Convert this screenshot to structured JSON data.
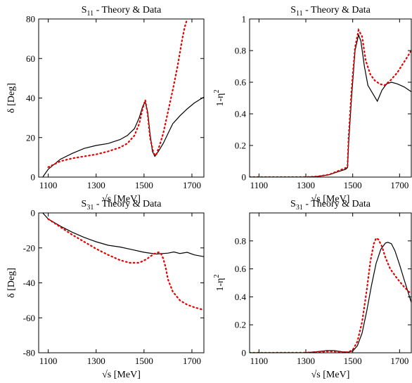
{
  "chart_data": [
    {
      "type": "line",
      "panel": "top-left",
      "title": "S11 - Theory & Data",
      "title_main": "S",
      "title_sub": "11",
      "title_rest": " - Theory & Data",
      "xlabel": "√s  [MeV]",
      "ylabel": "δ  [Deg]",
      "xlim": [
        1060,
        1750
      ],
      "ylim": [
        0,
        80
      ],
      "xticks": [
        1100,
        1300,
        1500,
        1700
      ],
      "yticks": [
        0,
        20,
        40,
        60,
        80
      ],
      "series": [
        {
          "style": "solid-black",
          "x": [
            1077,
            1100,
            1150,
            1200,
            1250,
            1300,
            1350,
            1400,
            1430,
            1460,
            1480,
            1495,
            1505,
            1515,
            1525,
            1535,
            1545,
            1560,
            1580,
            1600,
            1620,
            1650,
            1680,
            1710,
            1750
          ],
          "y": [
            0,
            4,
            9,
            12,
            14.5,
            16,
            17,
            19,
            21,
            24.5,
            30,
            36,
            38,
            33,
            22,
            13,
            10.5,
            13,
            17,
            22,
            27,
            31,
            34.5,
            37.5,
            40.5
          ]
        },
        {
          "style": "dotted-red",
          "x": [
            1100,
            1150,
            1200,
            1250,
            1300,
            1350,
            1400,
            1430,
            1460,
            1480,
            1495,
            1505,
            1515,
            1525,
            1540,
            1550,
            1565,
            1580,
            1600,
            1620,
            1640,
            1660,
            1670,
            1680
          ],
          "y": [
            5,
            8,
            9.5,
            10.5,
            11.5,
            13,
            15,
            17,
            21,
            27,
            35,
            39,
            32,
            20,
            12,
            11,
            16,
            22,
            33,
            44,
            56,
            70,
            76,
            80
          ]
        }
      ]
    },
    {
      "type": "line",
      "panel": "top-right",
      "title": "S11 - Theory & Data",
      "title_main": "S",
      "title_sub": "11",
      "title_rest": " - Theory & Data",
      "xlabel": "√s  [MeV]",
      "ylabel": "1-η2",
      "ylabel_main": "1-η",
      "ylabel_sup": "2",
      "xlim": [
        1060,
        1750
      ],
      "ylim": [
        0,
        1
      ],
      "xticks": [
        1100,
        1300,
        1500,
        1700
      ],
      "yticks": [
        0,
        0.2,
        0.4,
        0.6,
        0.8,
        1
      ],
      "ytick_labels": [
        "0",
        "0.2",
        "0.4",
        "0.6",
        "0.8",
        "1"
      ],
      "series": [
        {
          "style": "solid-black",
          "x": [
            1060,
            1300,
            1350,
            1400,
            1440,
            1470,
            1478,
            1482,
            1495,
            1510,
            1525,
            1535,
            1550,
            1565,
            1585,
            1605,
            1625,
            1645,
            1665,
            1690,
            1720,
            1750
          ],
          "y": [
            0,
            0,
            0.004,
            0.015,
            0.035,
            0.05,
            0.06,
            0.2,
            0.5,
            0.8,
            0.9,
            0.86,
            0.7,
            0.58,
            0.53,
            0.48,
            0.55,
            0.59,
            0.6,
            0.59,
            0.57,
            0.54
          ]
        },
        {
          "style": "dotted-red",
          "x": [
            1060,
            1300,
            1350,
            1400,
            1440,
            1470,
            1478,
            1482,
            1495,
            1510,
            1525,
            1540,
            1555,
            1575,
            1595,
            1615,
            1635,
            1660,
            1690,
            1720,
            1750
          ],
          "y": [
            0,
            0,
            0.004,
            0.016,
            0.04,
            0.058,
            0.07,
            0.24,
            0.55,
            0.82,
            0.93,
            0.89,
            0.74,
            0.65,
            0.61,
            0.59,
            0.58,
            0.61,
            0.66,
            0.73,
            0.8
          ]
        }
      ]
    },
    {
      "type": "line",
      "panel": "bottom-left",
      "title": "S31 - Theory & Data",
      "title_main": "S",
      "title_sub": "31",
      "title_rest": " - Theory & Data",
      "xlabel": "√s  [MeV]",
      "ylabel": "δ  [Deg]",
      "xlim": [
        1060,
        1750
      ],
      "ylim": [
        -80,
        0
      ],
      "xticks": [
        1100,
        1300,
        1500,
        1700
      ],
      "yticks": [
        -80,
        -60,
        -40,
        -20,
        0
      ],
      "series": [
        {
          "style": "solid-black",
          "x": [
            1077,
            1100,
            1150,
            1200,
            1250,
            1300,
            1350,
            1400,
            1450,
            1500,
            1550,
            1600,
            1625,
            1650,
            1680,
            1710,
            1750
          ],
          "y": [
            0,
            -3.5,
            -7.5,
            -11,
            -14,
            -16.5,
            -18.5,
            -19.5,
            -21,
            -22.5,
            -23.5,
            -23,
            -22.3,
            -23.2,
            -22.5,
            -24,
            -25
          ]
        },
        {
          "style": "dotted-red",
          "x": [
            1100,
            1150,
            1200,
            1250,
            1300,
            1350,
            1400,
            1440,
            1480,
            1510,
            1540,
            1560,
            1570,
            1580,
            1590,
            1600,
            1620,
            1650,
            1680,
            1710,
            1750
          ],
          "y": [
            -3.5,
            -8,
            -12.5,
            -16.5,
            -20.5,
            -24,
            -27,
            -28.5,
            -28.5,
            -26.5,
            -23.5,
            -22.5,
            -23,
            -26,
            -31,
            -38,
            -45,
            -50,
            -52.5,
            -54,
            -55.5
          ]
        }
      ]
    },
    {
      "type": "line",
      "panel": "bottom-right",
      "title": "S31 - Theory & Data",
      "title_main": "S",
      "title_sub": "31",
      "title_rest": " - Theory & Data",
      "xlabel": "√s  [MeV]",
      "ylabel": "1-η2",
      "ylabel_main": "1-η",
      "ylabel_sup": "2",
      "xlim": [
        1060,
        1750
      ],
      "ylim": [
        0,
        1
      ],
      "xticks": [
        1100,
        1300,
        1500,
        1700
      ],
      "yticks": [
        0,
        0.2,
        0.4,
        0.6,
        0.8
      ],
      "ytick_labels": [
        "0",
        "0.2",
        "0.4",
        "0.6",
        "0.8"
      ],
      "series": [
        {
          "style": "solid-black",
          "x": [
            1060,
            1300,
            1350,
            1390,
            1420,
            1450,
            1480,
            1500,
            1520,
            1540,
            1560,
            1580,
            1600,
            1620,
            1640,
            1650,
            1665,
            1680,
            1700,
            1720,
            1750
          ],
          "y": [
            0,
            0.001,
            0.008,
            0.016,
            0.016,
            0.008,
            0.004,
            0.012,
            0.05,
            0.14,
            0.3,
            0.48,
            0.64,
            0.74,
            0.785,
            0.79,
            0.78,
            0.73,
            0.63,
            0.52,
            0.36
          ]
        },
        {
          "style": "dotted-red",
          "x": [
            1060,
            1300,
            1350,
            1390,
            1420,
            1450,
            1480,
            1500,
            1520,
            1540,
            1560,
            1575,
            1590,
            1600,
            1610,
            1625,
            1640,
            1660,
            1690,
            1720,
            1750
          ],
          "y": [
            0,
            0.001,
            0.005,
            0.01,
            0.01,
            0.004,
            0.005,
            0.02,
            0.08,
            0.22,
            0.45,
            0.65,
            0.78,
            0.82,
            0.81,
            0.76,
            0.68,
            0.6,
            0.53,
            0.47,
            0.42
          ]
        }
      ]
    }
  ]
}
